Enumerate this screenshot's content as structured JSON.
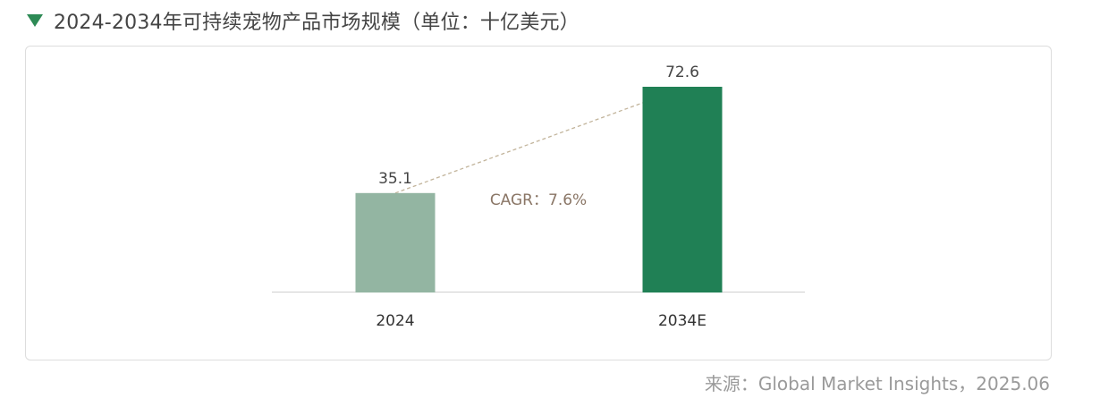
{
  "header": {
    "title": "2024-2034年可持续宠物产品市场规模（单位：十亿美元）"
  },
  "source": "来源：Global Market Insights，2025.06",
  "chart_data": {
    "type": "bar",
    "title": "2024-2034年可持续宠物产品市场规模（单位：十亿美元）",
    "unit": "十亿美元",
    "categories": [
      "2024",
      "2034E"
    ],
    "values": [
      35.1,
      72.6
    ],
    "data_labels": [
      "35.1",
      "72.6"
    ],
    "colors": [
      "#93b5a2",
      "#208055"
    ],
    "annotation": "CAGR：7.6%",
    "annotation_color": "#8a7666",
    "trend_line_color": "#c2b49b",
    "ylim": [
      0,
      72.6
    ],
    "grid": false,
    "legend": "none"
  }
}
